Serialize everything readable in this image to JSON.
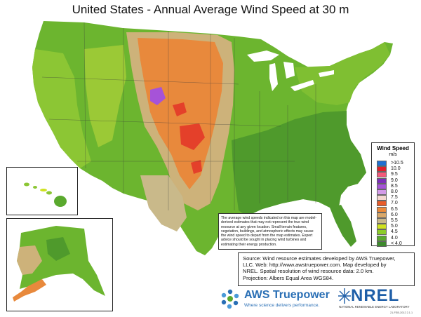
{
  "title": "United States - Annual Average Wind Speed at 30 m",
  "legend": {
    "title": "Wind Speed",
    "units": "m/s",
    "items": [
      {
        "label": ">10.5",
        "color": "#1f6fd1"
      },
      {
        "label": "10.0",
        "color": "#e0202a"
      },
      {
        "label": "9.5",
        "color": "#f35a7a"
      },
      {
        "label": "9.0",
        "color": "#7c2fb8"
      },
      {
        "label": "8.5",
        "color": "#a653d8"
      },
      {
        "label": "8.0",
        "color": "#d39be8"
      },
      {
        "label": "7.5",
        "color": "#f4d7d0"
      },
      {
        "label": "7.0",
        "color": "#e85c2a"
      },
      {
        "label": "6.5",
        "color": "#ec8a3a"
      },
      {
        "label": "6.0",
        "color": "#d9a86a"
      },
      {
        "label": "5.5",
        "color": "#c9b98a"
      },
      {
        "label": "5.0",
        "color": "#cfe21f"
      },
      {
        "label": "4.5",
        "color": "#8ccc2a"
      },
      {
        "label": "4.0",
        "color": "#5aa92e"
      },
      {
        "label": "< 4.0",
        "color": "#3e8a2e"
      }
    ]
  },
  "disclaimer": "The average wind speeds indicated on this map are model-derived estimates that may not represent the true wind resource at any given location. Small terrain features, vegetation, buildings, and atmospheric effects may cause the wind speed to depart from the map estimates. Expert advice should be sought in placing wind turbines and estimating their energy production.",
  "source": {
    "line1": "Source: Wind resource estimates developed by AWS Truepower,",
    "line2": "LLC.  Web: http://www.awstruepower.com. Map developed by",
    "line3": "NREL.  Spatial resolution of wind resource data: 2.0 km.",
    "line4": "Projection: Albers Equal Area WGS84."
  },
  "logos": {
    "aws_name": "AWS Truepower",
    "aws_tagline": "Where science delivers performance.",
    "nrel_name": "NREL",
    "nrel_tagline": "NATIONAL RENEWABLE ENERGY LABORATORY"
  },
  "footer_code": "21-FEB-2012 2.1.1"
}
